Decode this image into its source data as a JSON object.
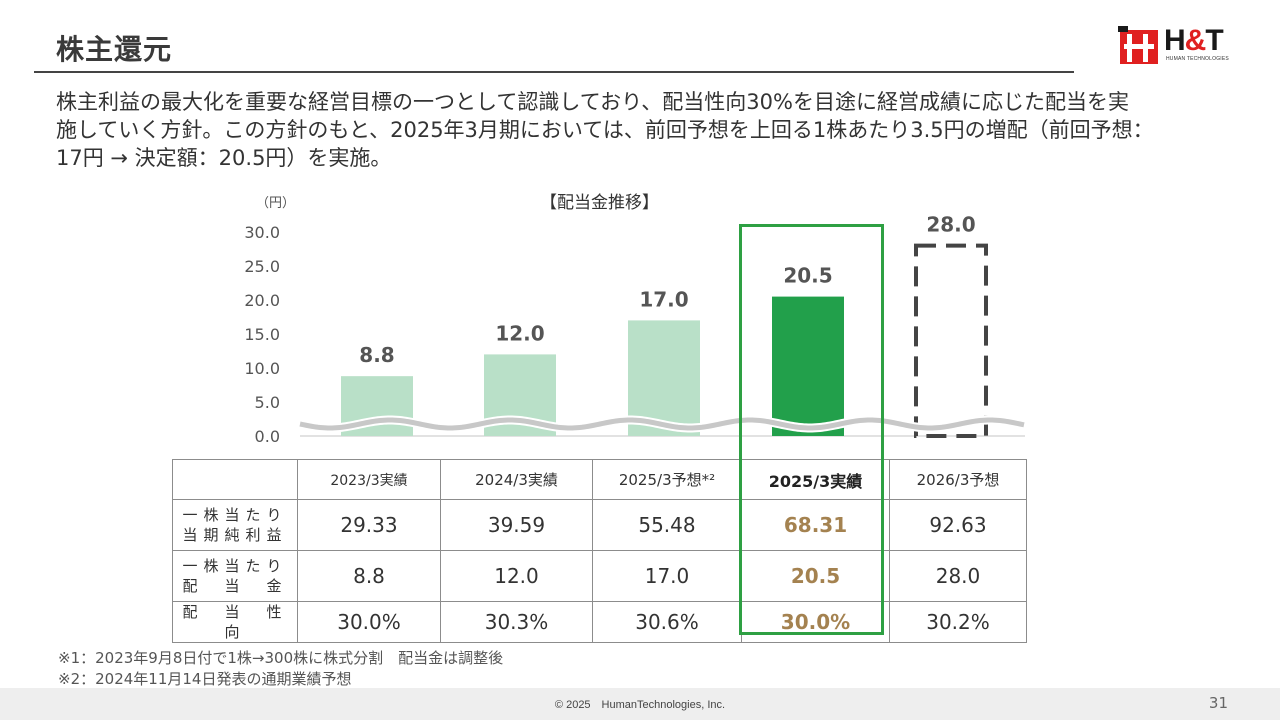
{
  "header": {
    "title": "株主還元",
    "logo": {
      "text_main": "H",
      "text_amp": "&",
      "text_end": "T",
      "sub": "HUMAN TECHNOLOGIES"
    }
  },
  "intro": {
    "lines": [
      "株主利益の最大化を重要な経営目標の一つとして認識しており、配当性向30%を目途に経営成績に応じた配当を実",
      "施していく方針。この方針のもと、2025年3月期においては、前回予想を上回る1株あたり3.5円の増配（前回予想：",
      "17円 → 決定額：20.5円）を実施。"
    ]
  },
  "chart_data": {
    "type": "bar",
    "title": "【配当金推移】",
    "ylabel": "（円）",
    "ylim": [
      0,
      30
    ],
    "yticks": [
      "0.0",
      "5.0",
      "10.0",
      "15.0",
      "20.0",
      "25.0",
      "30.0"
    ],
    "values": [
      8.8,
      12.0,
      17.0,
      20.5,
      28.0
    ],
    "value_labels": [
      "8.8",
      "12.0",
      "17.0",
      "20.5",
      "28.0"
    ],
    "styles": [
      "actual",
      "actual",
      "forecast-past",
      "highlight",
      "forecast"
    ],
    "colors": {
      "light": "#b9e0c8",
      "highlight": "#22a04b",
      "dashed": "#444444",
      "wave": "#c8c8c8"
    }
  },
  "table": {
    "headers": [
      "2023/3実績",
      "2024/3実績",
      "2025/3予想*²",
      "2025/3実績",
      "2026/3予想"
    ],
    "rows": [
      {
        "label_line1": "一株当たり",
        "label_line2": "当期純利益",
        "values": [
          "29.33",
          "39.59",
          "55.48",
          "68.31",
          "92.63"
        ]
      },
      {
        "label_line1": "一株当たり",
        "label_line2": "配　当　金",
        "values": [
          "8.8",
          "12.0",
          "17.0",
          "20.5",
          "28.0"
        ]
      },
      {
        "label_line1": "配　当　性　向",
        "label_line2": "",
        "values": [
          "30.0%",
          "30.3%",
          "30.6%",
          "30.0%",
          "30.2%"
        ]
      }
    ]
  },
  "notes": [
    "※1：2023年9月8日付で1株→300株に株式分割　配当金は調整後",
    "※2：2024年11月14日発表の通期業績予想"
  ],
  "footer": {
    "copyright": "© 2025　HumanTechnologies, Inc.",
    "page": "31"
  }
}
